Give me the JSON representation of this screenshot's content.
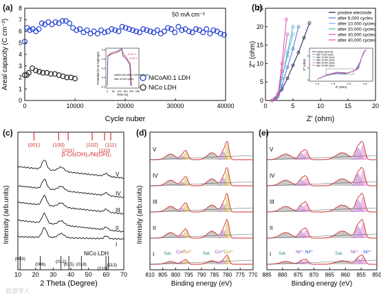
{
  "chart_data": [
    {
      "panel": "(a)",
      "type": "scatter",
      "ylabel": "Areal capacity (C cm⁻²)",
      "xlabel": "Cycle nuber",
      "annotation": "50 mA cm⁻²",
      "xlim": [
        0,
        40000
      ],
      "ylim": [
        0,
        8
      ],
      "xticks": [
        "0",
        "10000",
        "20000",
        "30000",
        "40000"
      ],
      "yticks": [
        "0",
        "1",
        "2",
        "3",
        "4",
        "5",
        "6",
        "7",
        "8"
      ],
      "series": [
        {
          "name": "NiCoAl0.1 LDH",
          "color": "#1f3fd1",
          "x": [
            0,
            500,
            1000,
            1600,
            2200,
            2800,
            3400,
            4000,
            4700,
            5400,
            6100,
            6800,
            7500,
            8200,
            8900,
            9600,
            10300,
            11000,
            11700,
            12400,
            13100,
            13800,
            14500,
            15200,
            15900,
            16600,
            17300,
            18000,
            18700,
            19400,
            20100,
            20800,
            21500,
            22200,
            22900,
            23600,
            24300,
            25000,
            25700,
            26400,
            27100,
            27800,
            28500,
            29200,
            29900,
            30600,
            31300,
            32000,
            32700,
            33400,
            34100,
            34800,
            35500,
            36200,
            36900,
            37600,
            38300,
            39000,
            39700
          ],
          "y": [
            5.1,
            6.3,
            6.1,
            6.2,
            6.0,
            6.2,
            6.7,
            6.6,
            6.8,
            6.6,
            6.8,
            6.7,
            6.9,
            6.9,
            6.7,
            6.3,
            6.1,
            6.2,
            5.9,
            6.1,
            5.8,
            6.0,
            5.8,
            6.1,
            5.9,
            6.0,
            6.2,
            6.1,
            6.0,
            6.4,
            6.3,
            6.2,
            6.1,
            6.0,
            5.9,
            6.2,
            6.1,
            6.0,
            5.9,
            6.1,
            5.8,
            6.0,
            6.3,
            6.2,
            5.9,
            6.4,
            6.1,
            6.2,
            6.0,
            5.9,
            6.2,
            6.1,
            5.9,
            6.2,
            5.8,
            6.1,
            6.0,
            5.8,
            5.7
          ]
        },
        {
          "name": "NiCo LDH",
          "color": "#222222",
          "x": [
            0,
            400,
            800,
            1500,
            2200,
            2900,
            3600,
            4400,
            5200,
            6000,
            6800,
            7600,
            8400,
            9200,
            10000
          ],
          "y": [
            2.2,
            2.2,
            2.4,
            2.8,
            2.6,
            2.5,
            2.4,
            2.4,
            2.3,
            2.3,
            2.2,
            2.1,
            2.0,
            2.0,
            1.9
          ]
        }
      ],
      "legend": [
        "NiCoAl0.1 LDH",
        "NiCo LDH"
      ],
      "legend_placement": "bottom-right",
      "inset": {
        "type": "line",
        "xlabel": "Time (s)",
        "ylabel": "Potential (V vs Hg/HgO)",
        "xticks": [
          "0",
          "50",
          "100",
          "150",
          "200",
          "250"
        ],
        "yticks": [
          "-0.2",
          "0.0",
          "0.2",
          "0.4",
          "0.6"
        ],
        "annotations": [
          "0.07 V",
          "0.03 V"
        ],
        "legend": [
          "pristine NiCoAl0.1 LDH electrode",
          "after 40,000 cycles"
        ],
        "series": [
          {
            "name": "pristine NiCoAl0.1 LDH electrode",
            "color": "#c0392b",
            "x": [
              0,
              5,
              30,
              60,
              90,
              105,
              120,
              135,
              150,
              190,
              200
            ],
            "y": [
              -0.18,
              0.45,
              0.5,
              0.52,
              0.55,
              0.57,
              0.59,
              0.5,
              0.45,
              0.3,
              -0.18
            ]
          },
          {
            "name": "after 40,000 cycles",
            "color": "#5b3fb0",
            "x": [
              0,
              5,
              30,
              60,
              90,
              105,
              120,
              130,
              150,
              185,
              195
            ],
            "y": [
              -0.18,
              0.47,
              0.52,
              0.55,
              0.57,
              0.6,
              0.62,
              0.45,
              0.42,
              0.28,
              -0.18
            ]
          }
        ]
      }
    },
    {
      "panel": "(b)",
      "type": "line",
      "xlabel": "Z' (ohm)",
      "ylabel": "Z\" (ohm)",
      "xlim": [
        0,
        20
      ],
      "ylim": [
        0,
        25
      ],
      "xticks": [
        "0",
        "5",
        "10",
        "15",
        "20"
      ],
      "yticks": [
        "0",
        "5",
        "10",
        "15",
        "20",
        "25"
      ],
      "legend": [
        "pristine electrode",
        "after 5,000 cycles",
        "after 10,000 cycles",
        "after 20,000 cycles",
        "after 30,000 cycles",
        "after 40,000 cycles"
      ],
      "series": [
        {
          "name": "pristine electrode",
          "color": "#1a1a4a",
          "x": [
            1.2,
            1.6,
            2,
            3,
            4,
            5,
            6,
            7,
            8
          ],
          "y": [
            0,
            0.3,
            0.8,
            3,
            6,
            9.5,
            13,
            17,
            21
          ]
        },
        {
          "name": "after 5,000 cycles",
          "color": "#4f6fd8",
          "x": [
            1.2,
            1.7,
            2.2,
            3,
            4,
            5,
            6
          ],
          "y": [
            0,
            0.4,
            1,
            4,
            9,
            14,
            20
          ]
        },
        {
          "name": "after 10,000 cycles",
          "color": "#6fb0e8",
          "x": [
            1.2,
            1.7,
            2.2,
            3,
            4,
            5
          ],
          "y": [
            0,
            0.5,
            1.3,
            6,
            12,
            18
          ]
        },
        {
          "name": "after 20,000 cycles",
          "color": "#40b8b0",
          "x": [
            1.2,
            1.8,
            2.3,
            3,
            4,
            5
          ],
          "y": [
            0,
            0.5,
            1.4,
            6,
            13,
            20
          ]
        },
        {
          "name": "after 30,000 cycles",
          "color": "#c060c0",
          "x": [
            1.2,
            1.8,
            2.3,
            3,
            4
          ],
          "y": [
            0,
            0.6,
            1.6,
            8,
            18
          ]
        },
        {
          "name": "after 40,000 cycles",
          "color": "#e04aa8",
          "x": [
            1.2,
            1.8,
            2.3,
            3,
            3.8
          ],
          "y": [
            0,
            0.6,
            1.8,
            10,
            22
          ]
        }
      ],
      "inset": {
        "xlabel": "Z' (ohm)",
        "ylabel": "Z\" (ohm)",
        "xticks": [
          "1.0",
          "1.5",
          "2.0",
          "2.5"
        ],
        "yticks": [
          "0",
          "1",
          "2"
        ],
        "legend": [
          "pristine electrode",
          "after 5,000 cycles",
          "after 10,000 cycles",
          "after 20,000 cycles",
          "after 30,000 cycles",
          "after 40,000 cycles"
        ]
      }
    },
    {
      "panel": "(c)",
      "type": "line",
      "xlabel": "2 Theta (Degree)",
      "ylabel": "Intensity (arb.units)",
      "xlim": [
        10,
        70
      ],
      "xticks": [
        "10",
        "20",
        "30",
        "40",
        "50",
        "60",
        "70"
      ],
      "reference_top": {
        "label": "β-Co(OH)₂/Ni(OH)₂",
        "color": "#d32f2f",
        "peaks": [
          {
            "label": "(001)",
            "x": 19.1
          },
          {
            "label": "(100)",
            "x": 33.1
          },
          {
            "label": "(101)",
            "x": 38.5
          },
          {
            "label": "(102)",
            "x": 52.1
          },
          {
            "label": "(110)",
            "x": 59.1
          },
          {
            "label": "(111)",
            "x": 62.6
          }
        ]
      },
      "reference_bottom": {
        "label": "NiCo LDH",
        "color": "#222222",
        "peaks": [
          {
            "label": "(003)",
            "x": 11.3
          },
          {
            "label": "(006)",
            "x": 22.7
          },
          {
            "label": "(012)",
            "x": 34.4
          },
          {
            "label": "(015)",
            "x": 38.9
          },
          {
            "label": "(018)",
            "x": 46.0
          },
          {
            "label": "(110)",
            "x": 59.9
          },
          {
            "label": "(113)",
            "x": 61.3
          }
        ]
      },
      "curve_labels": [
        "V",
        "IV",
        "III",
        "II",
        "I"
      ]
    },
    {
      "panel": "(d)",
      "type": "line",
      "xlabel": "Binding energy (eV)",
      "ylabel": "Intensity (arb.units)",
      "xlim": [
        810,
        770
      ],
      "xticks": [
        "810",
        "805",
        "800",
        "795",
        "790",
        "785",
        "780",
        "775",
        "770"
      ],
      "curve_labels": [
        "V",
        "IV",
        "III",
        "II",
        "I"
      ],
      "peak_labels": [
        "Sat.",
        "Co²⁺",
        "Co³⁺",
        "Sat.",
        "Co²⁺",
        "Co³⁺"
      ]
    },
    {
      "panel": "(e)",
      "type": "line",
      "xlabel": "Binding energy (eV)",
      "xlim": [
        885,
        850
      ],
      "xticks": [
        "885",
        "880",
        "875",
        "870",
        "865",
        "860",
        "855",
        "850"
      ],
      "curve_labels": [
        "V",
        "IV",
        "III",
        "II",
        "I"
      ],
      "peak_labels": [
        "Sat.",
        "Ni²⁺",
        "Ni³⁺",
        "Sat.",
        "Ni²⁺",
        "Ni³⁺"
      ]
    }
  ],
  "watermark": "能源学人"
}
